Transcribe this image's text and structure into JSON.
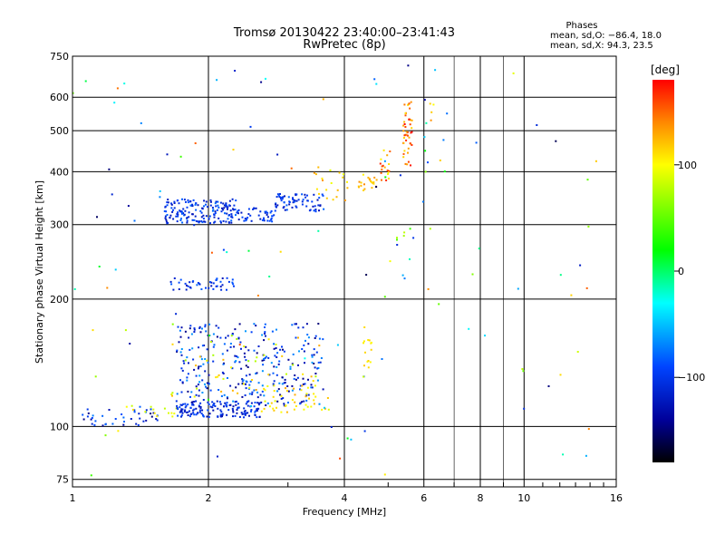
{
  "chart_data": {
    "type": "scatter",
    "title": "Tromsø 20130422 23:40:00–23:41:43",
    "subtitle": "RwPretec (8p)",
    "xlabel": "Frequency [MHz]",
    "ylabel": "Stationary phase Virtual Height [km]",
    "x_scale": "log",
    "y_scale": "log",
    "xlim": [
      1,
      16
    ],
    "ylim": [
      72,
      750
    ],
    "x_ticks": [
      1,
      2,
      4,
      6,
      8,
      10,
      16
    ],
    "x_tick_labels": [
      "1",
      "2",
      "4",
      "6",
      "8",
      "10",
      "16"
    ],
    "x_grid": [
      1,
      2,
      4,
      6,
      8,
      10,
      16
    ],
    "x_grid_light": [
      7,
      9
    ],
    "y_ticks": [
      75,
      100,
      200,
      300,
      400,
      500,
      600,
      750
    ],
    "y_tick_labels": [
      "75",
      "100",
      "200",
      "300",
      "400",
      "500",
      "600",
      "750"
    ],
    "y_grid": [
      75,
      100,
      200,
      300,
      400,
      500,
      600
    ],
    "grid": true,
    "stats": {
      "header": "Phases",
      "line1": "mean, sd,O: −86.4, 18.0",
      "line2": "mean, sd,X:  94.3, 23.5"
    },
    "colorbar": {
      "label": "[deg]",
      "range": [
        -180,
        180
      ],
      "ticks": [
        100,
        0,
        -100
      ],
      "tick_labels": [
        "100",
        "0",
        "−100"
      ],
      "colors": [
        "#ff0000",
        "#ff8800",
        "#ffff00",
        "#00ff00",
        "#00ffff",
        "#0044ff",
        "#000099",
        "#000000"
      ],
      "color_positions": [
        180,
        140,
        100,
        20,
        -30,
        -90,
        -140,
        -180
      ]
    },
    "clusters": [
      {
        "x": [
          1.05,
          1.55
        ],
        "y": [
          100,
          110
        ],
        "phase": [
          -150,
          -70
        ],
        "n": 40
      },
      {
        "x": [
          1.3,
          1.75
        ],
        "y": [
          103,
          112
        ],
        "phase": [
          80,
          115
        ],
        "n": 14
      },
      {
        "x": [
          1.7,
          2.6
        ],
        "y": [
          105,
          115
        ],
        "phase": [
          -130,
          -85
        ],
        "n": 150
      },
      {
        "x": [
          1.7,
          3.6
        ],
        "y": [
          112,
          175
        ],
        "phase": [
          -150,
          -60
        ],
        "n": 300
      },
      {
        "x": [
          1.6,
          3.6
        ],
        "y": [
          115,
          165
        ],
        "phase": [
          70,
          130
        ],
        "n": 50
      },
      {
        "x": [
          2.6,
          3.7
        ],
        "y": [
          108,
          125
        ],
        "phase": [
          90,
          130
        ],
        "n": 40
      },
      {
        "x": [
          1.65,
          2.3
        ],
        "y": [
          210,
          225
        ],
        "phase": [
          -125,
          -80
        ],
        "n": 45
      },
      {
        "x": [
          1.6,
          2.3
        ],
        "y": [
          302,
          345
        ],
        "phase": [
          -130,
          -75
        ],
        "n": 160
      },
      {
        "x": [
          2.2,
          2.8
        ],
        "y": [
          305,
          330
        ],
        "phase": [
          -125,
          -80
        ],
        "n": 50
      },
      {
        "x": [
          2.8,
          3.6
        ],
        "y": [
          322,
          355
        ],
        "phase": [
          -130,
          -80
        ],
        "n": 70
      },
      {
        "x": [
          3.4,
          4.1
        ],
        "y": [
          340,
          415
        ],
        "phase": [
          90,
          135
        ],
        "n": 20
      },
      {
        "x": [
          4.3,
          4.8
        ],
        "y": [
          360,
          395
        ],
        "phase": [
          100,
          140
        ],
        "n": 22
      },
      {
        "x": [
          4.8,
          5.05
        ],
        "y": [
          380,
          455
        ],
        "phase": [
          100,
          170
        ],
        "n": 18
      },
      {
        "x": [
          5.4,
          5.65
        ],
        "y": [
          410,
          600
        ],
        "phase": [
          110,
          180
        ],
        "n": 45
      },
      {
        "x": [
          4.4,
          4.6
        ],
        "y": [
          135,
          175
        ],
        "phase": [
          100,
          120
        ],
        "n": 14
      },
      {
        "x": [
          5.0,
          5.7
        ],
        "y": [
          205,
          300
        ],
        "phase": [
          -110,
          120
        ],
        "n": 10
      },
      {
        "x": [
          6.0,
          6.8
        ],
        "y": [
          380,
          700
        ],
        "phase": [
          -140,
          140
        ],
        "n": 12
      },
      {
        "x": [
          1.0,
          14.5
        ],
        "y": [
          76,
          720
        ],
        "phase": [
          -160,
          160
        ],
        "n": 110
      }
    ]
  }
}
